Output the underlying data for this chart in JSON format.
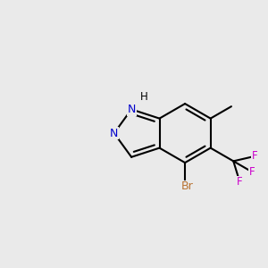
{
  "bg": "#eaeaea",
  "bc": "#000000",
  "lw": 1.5,
  "dbo": 0.016,
  "br_c": "#b87333",
  "f_c": "#cc00cc",
  "n_c": "#0000cc",
  "h_c": "#000000",
  "fs": 8.5,
  "figsize": [
    3.0,
    3.0
  ],
  "dpi": 100,
  "bl": 0.112,
  "c3a": [
    0.595,
    0.448
  ],
  "c7a": [
    0.595,
    0.558
  ]
}
